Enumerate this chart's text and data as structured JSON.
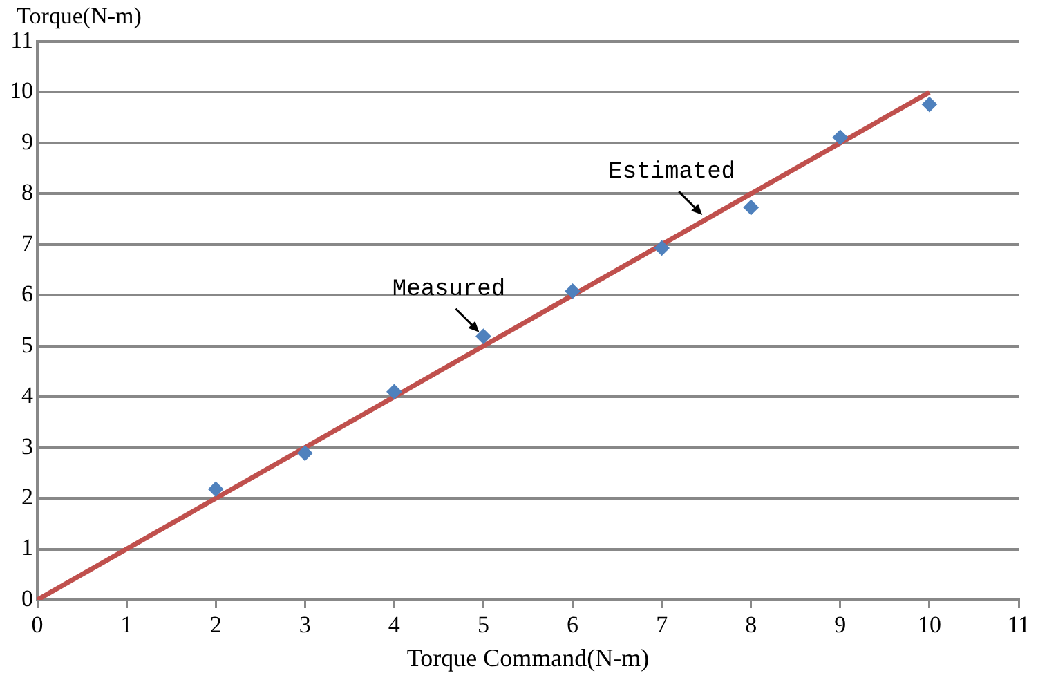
{
  "chart_data": {
    "type": "scatter",
    "xlabel": "Torque Command(N-m)",
    "ylabel": "Torque(N-m)",
    "xlim": [
      0,
      11
    ],
    "xticks": [
      0,
      1,
      2,
      3,
      4,
      5,
      6,
      7,
      8,
      9,
      10,
      11
    ],
    "ylim": [
      0,
      11
    ],
    "yticks": [
      0,
      1,
      2,
      3,
      4,
      5,
      6,
      7,
      8,
      9,
      10,
      11
    ],
    "grid": "y",
    "legend": false,
    "marker": "diamond",
    "series": [
      {
        "color": "#4f81bd",
        "x": [
          2,
          3,
          4,
          5,
          6,
          7,
          8,
          9,
          10
        ],
        "values": [
          2.18,
          2.89,
          4.1,
          5.19,
          6.08,
          6.93,
          7.73,
          9.11,
          9.76
        ]
      },
      {
        "type": "line",
        "color": "#c0504d",
        "marker": "none",
        "line_style": "solid",
        "x": [
          0,
          10
        ],
        "values": [
          0,
          10
        ]
      }
    ],
    "annotations": [
      {
        "text": "Measured",
        "x": 5,
        "y": 5.19
      },
      {
        "text": "Estimated",
        "x": 7.5,
        "y": 7.5
      }
    ]
  }
}
